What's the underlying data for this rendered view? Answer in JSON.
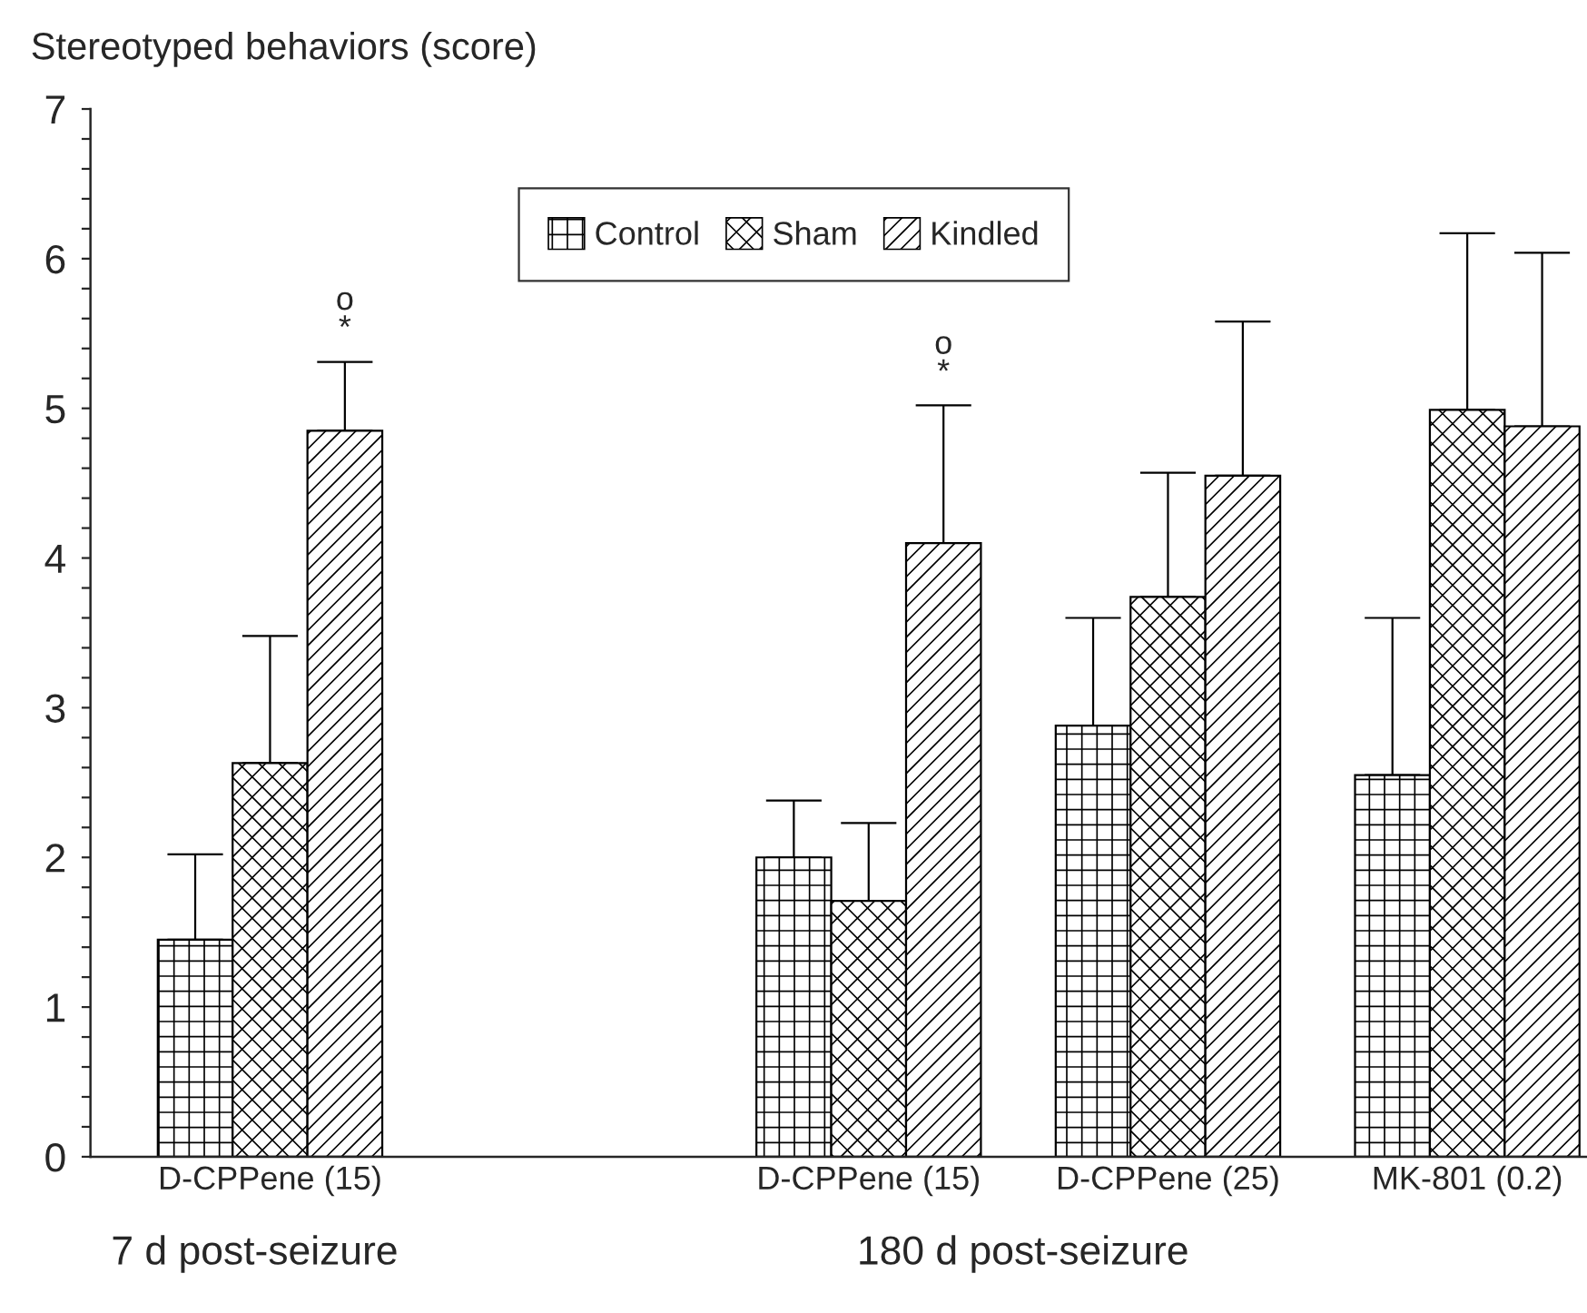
{
  "chart_data": {
    "type": "bar",
    "ylabel": "Stereotyped behaviors (score)",
    "categories": [
      "D-CPPene (15)",
      null,
      "D-CPPene (15)",
      "D-CPPene (25)",
      "MK-801 (0.2)"
    ],
    "series": [
      {
        "name": "Control",
        "color": "#000000",
        "values": [
          1.45,
          null,
          2.0,
          2.88,
          2.55
        ],
        "errors": [
          [
            1.45,
            2.02
          ],
          null,
          [
            2.0,
            2.38
          ],
          [
            2.88,
            3.6
          ],
          [
            2.55,
            3.6
          ]
        ]
      },
      {
        "name": "Sham",
        "color": "#000000",
        "values": [
          2.63,
          null,
          1.71,
          3.74,
          4.99
        ],
        "errors": [
          [
            2.63,
            3.48
          ],
          null,
          [
            1.71,
            2.23
          ],
          [
            3.74,
            4.57
          ],
          [
            4.99,
            6.17
          ]
        ]
      },
      {
        "name": "Kindled",
        "color": "#000000",
        "values": [
          4.85,
          null,
          4.1,
          4.55,
          4.88
        ],
        "errors": [
          [
            4.85,
            5.31
          ],
          null,
          [
            4.1,
            5.02
          ],
          [
            4.55,
            5.58
          ],
          [
            4.88,
            6.04
          ]
        ]
      }
    ],
    "ylim": [
      0,
      7
    ],
    "yticks": [
      0,
      {
        "value": 0.2,
        "label": null
      },
      {
        "value": 0.4,
        "label": null
      },
      {
        "value": 0.6,
        "label": null
      },
      {
        "value": 0.8,
        "label": null
      },
      1,
      {
        "value": 1.2,
        "label": null
      },
      {
        "value": 1.4,
        "label": null
      },
      {
        "value": 1.6,
        "label": null
      },
      {
        "value": 1.8,
        "label": null
      },
      2,
      {
        "value": 2.2,
        "label": null
      },
      {
        "value": 2.4,
        "label": null
      },
      {
        "value": 2.6,
        "label": null
      },
      {
        "value": 2.8,
        "label": null
      },
      3,
      {
        "value": 3.2,
        "label": null
      },
      {
        "value": 3.4,
        "label": null
      },
      {
        "value": 3.6,
        "label": null
      },
      {
        "value": 3.8,
        "label": null
      },
      4,
      {
        "value": 4.2,
        "label": null
      },
      {
        "value": 4.4,
        "label": null
      },
      {
        "value": 4.6,
        "label": null
      },
      {
        "value": 4.8,
        "label": null
      },
      5,
      {
        "value": 5.2,
        "label": null
      },
      {
        "value": 5.4,
        "label": null
      },
      {
        "value": 5.6,
        "label": null
      },
      {
        "value": 5.8,
        "label": null
      },
      6,
      {
        "value": 6.2,
        "label": null
      },
      {
        "value": 6.4,
        "label": null
      },
      {
        "value": 6.6,
        "label": null
      },
      {
        "value": 6.8,
        "label": null
      },
      7
    ],
    "annotations": [
      "o\n*",
      "o\n*",
      "7 d post-seizure",
      "180 d post-seizure"
    ],
    "legend": "top center",
    "grid": false
  }
}
